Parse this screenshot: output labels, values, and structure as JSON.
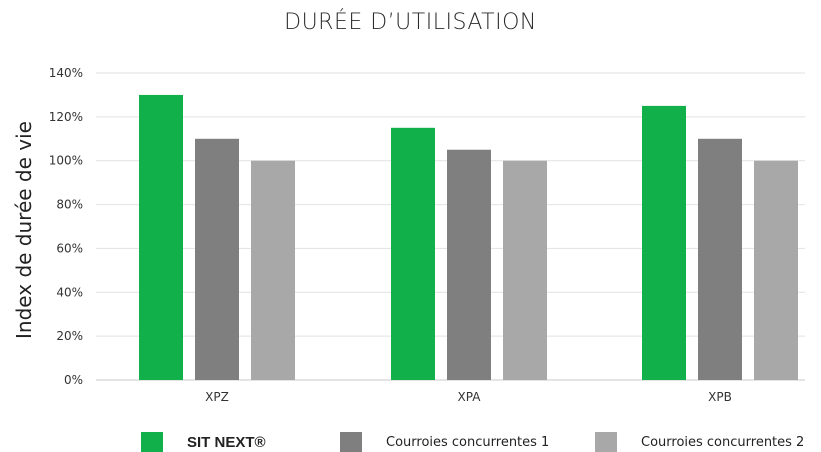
{
  "chart_data": {
    "type": "bar",
    "title": "DURÉE D’UTILISATION",
    "ylabel": "Index de durée de vie",
    "xlabel": "",
    "categories": [
      "XPZ",
      "XPA",
      "XPB"
    ],
    "ylim": [
      0,
      140
    ],
    "yticks": [
      "0%",
      "20%",
      "40%",
      "60%",
      "80%",
      "100%",
      "120%",
      "140%"
    ],
    "grid": true,
    "legend_position": "bottom",
    "series": [
      {
        "name": "SIT NEXT®",
        "color": "#11b04b",
        "values": [
          130,
          115,
          125
        ]
      },
      {
        "name": "Courroies concurrentes 1",
        "color": "#7f7f7f",
        "values": [
          110,
          105,
          110
        ]
      },
      {
        "name": "Courroies concurrentes 2",
        "color": "#a8a8a8",
        "values": [
          100,
          100,
          100
        ]
      }
    ]
  }
}
